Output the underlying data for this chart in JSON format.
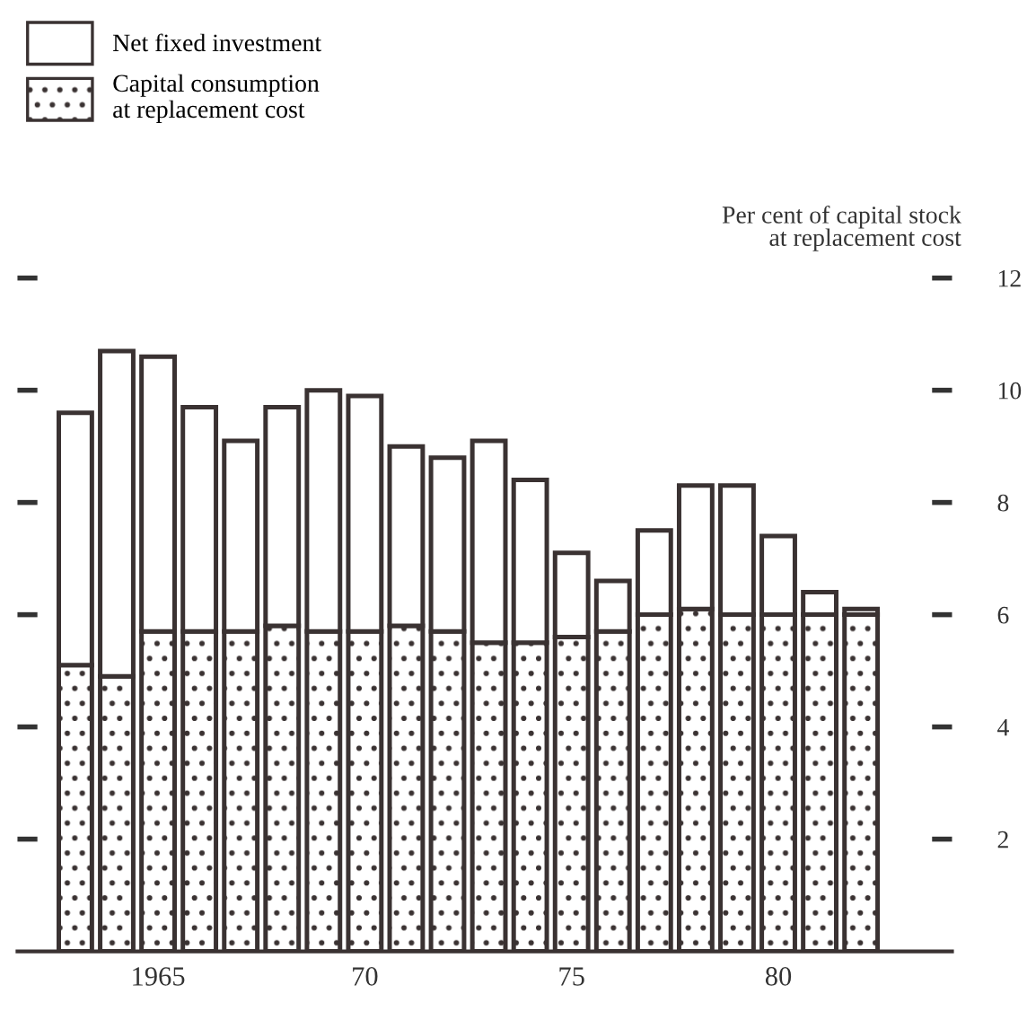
{
  "chart_data": {
    "type": "bar",
    "stacked": true,
    "x": [
      1963,
      1964,
      1965,
      1966,
      1967,
      1968,
      1969,
      1970,
      1971,
      1972,
      1973,
      1974,
      1975,
      1976,
      1977,
      1978,
      1979,
      1980,
      1981,
      1982
    ],
    "series": [
      {
        "name": "Capital consumption\nat replacement cost",
        "color": "#3a3232",
        "values": [
          5.1,
          4.9,
          5.7,
          5.7,
          5.7,
          5.8,
          5.7,
          5.7,
          5.8,
          5.7,
          5.5,
          5.5,
          5.6,
          5.7,
          6.0,
          6.1,
          6.0,
          6.0,
          6.0,
          6.0
        ]
      },
      {
        "name": "Net fixed investment",
        "color": "#3a3232",
        "values": [
          4.5,
          5.8,
          4.9,
          4.0,
          3.4,
          3.9,
          4.3,
          4.2,
          3.2,
          3.1,
          3.6,
          2.9,
          1.5,
          0.9,
          1.5,
          2.2,
          2.3,
          1.4,
          0.4,
          0.1
        ]
      }
    ],
    "ylabel": "Per cent of capital stock\nat replacement cost",
    "xlim": [
      1961.6,
      1984.2
    ],
    "xticks": [
      {
        "value": 1965,
        "label": "1965"
      },
      {
        "value": 1970,
        "label": "70"
      },
      {
        "value": 1975,
        "label": "75"
      },
      {
        "value": 1980,
        "label": "80"
      }
    ],
    "ylim": [
      0,
      12
    ],
    "yticks": [
      2,
      4,
      6,
      8,
      10,
      12
    ],
    "legend": "top left",
    "grid": false
  }
}
